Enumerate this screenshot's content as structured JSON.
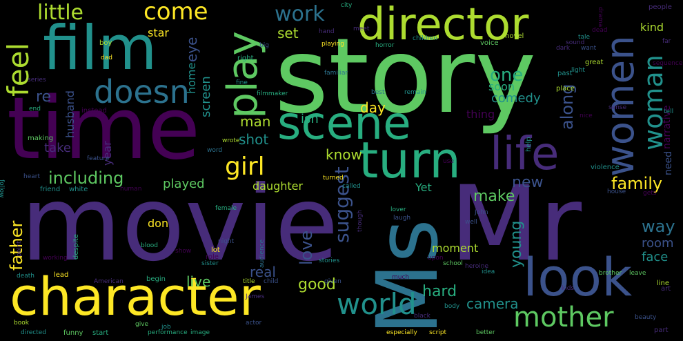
{
  "background": "#000000",
  "palette": {
    "purple": "#440154",
    "violet": "#472c7a",
    "indigo": "#3b528b",
    "blue": "#2c728e",
    "teal": "#21918c",
    "green": "#28ae80",
    "lime": "#5ec962",
    "yellow": "#fde725",
    "lightgreen": "#addc30"
  },
  "words": [
    {
      "text": "movie"
    },
    {
      "text": "story"
    },
    {
      "text": "time"
    },
    {
      "text": "Ms"
    },
    {
      "text": "Mr"
    },
    {
      "text": "film"
    },
    {
      "text": "character"
    },
    {
      "text": "director"
    },
    {
      "text": "scene"
    },
    {
      "text": "turn"
    },
    {
      "text": "look"
    },
    {
      "text": "women"
    },
    {
      "text": "woman"
    },
    {
      "text": "life"
    },
    {
      "text": "play"
    },
    {
      "text": "doesn"
    },
    {
      "text": "feel"
    },
    {
      "text": "little"
    },
    {
      "text": "come"
    },
    {
      "text": "work"
    },
    {
      "text": "world"
    },
    {
      "text": "mother"
    },
    {
      "text": "girl"
    },
    {
      "text": "one"
    },
    {
      "text": "along"
    },
    {
      "text": "including"
    },
    {
      "text": "family"
    },
    {
      "text": "way"
    },
    {
      "text": "father"
    },
    {
      "text": "husband"
    },
    {
      "text": "suggest"
    },
    {
      "text": "love"
    },
    {
      "text": "young"
    },
    {
      "text": "camera"
    },
    {
      "text": "good"
    },
    {
      "text": "hard"
    },
    {
      "text": "real"
    },
    {
      "text": "live"
    },
    {
      "text": "make"
    },
    {
      "text": "new"
    },
    {
      "text": "know"
    },
    {
      "text": "man"
    },
    {
      "text": "shot"
    },
    {
      "text": "day"
    },
    {
      "text": "year"
    },
    {
      "text": "take"
    },
    {
      "text": "re"
    },
    {
      "text": "set"
    },
    {
      "text": "eye"
    },
    {
      "text": "home"
    },
    {
      "text": "screen"
    },
    {
      "text": "star"
    },
    {
      "text": "soon"
    },
    {
      "text": "comedy"
    },
    {
      "text": "thing"
    },
    {
      "text": "isn"
    },
    {
      "text": "played"
    },
    {
      "text": "daughter"
    },
    {
      "text": "Yet"
    },
    {
      "text": "don"
    },
    {
      "text": "moment"
    },
    {
      "text": "room"
    },
    {
      "text": "face"
    },
    {
      "text": "narrative"
    },
    {
      "text": "need"
    },
    {
      "text": "kind"
    },
    {
      "text": "role"
    },
    {
      "text": "lot"
    },
    {
      "text": "sister"
    },
    {
      "text": "blood"
    },
    {
      "text": "despite"
    },
    {
      "text": "working"
    },
    {
      "text": "point"
    },
    {
      "text": "death"
    },
    {
      "text": "lead"
    },
    {
      "text": "American"
    },
    {
      "text": "begin"
    },
    {
      "text": "title"
    },
    {
      "text": "child"
    },
    {
      "text": "given"
    },
    {
      "text": "book"
    },
    {
      "text": "give"
    },
    {
      "text": "job"
    },
    {
      "text": "funny"
    },
    {
      "text": "start"
    },
    {
      "text": "directed"
    },
    {
      "text": "performance"
    },
    {
      "text": "image"
    },
    {
      "text": "actor"
    },
    {
      "text": "especially"
    },
    {
      "text": "script"
    },
    {
      "text": "better"
    },
    {
      "text": "art"
    },
    {
      "text": "part"
    },
    {
      "text": "line"
    },
    {
      "text": "brother"
    },
    {
      "text": "leave"
    },
    {
      "text": "violence"
    },
    {
      "text": "house"
    },
    {
      "text": "gets"
    },
    {
      "text": "tell"
    },
    {
      "text": "help"
    },
    {
      "text": "place"
    },
    {
      "text": "past"
    },
    {
      "text": "nice"
    },
    {
      "text": "light"
    },
    {
      "text": "great"
    },
    {
      "text": "want"
    },
    {
      "text": "dark"
    },
    {
      "text": "novel"
    },
    {
      "text": "voice"
    },
    {
      "text": "children"
    },
    {
      "text": "horror"
    },
    {
      "text": "playing"
    },
    {
      "text": "hand"
    },
    {
      "text": "city"
    },
    {
      "text": "meet"
    },
    {
      "text": "dead"
    },
    {
      "text": "people"
    },
    {
      "text": "drama"
    },
    {
      "text": "tale"
    },
    {
      "text": "sound"
    },
    {
      "text": "far"
    },
    {
      "text": "boy"
    },
    {
      "text": "dad"
    },
    {
      "text": "right"
    },
    {
      "text": "big"
    },
    {
      "text": "fine"
    },
    {
      "text": "filmmaker"
    },
    {
      "text": "series"
    },
    {
      "text": "end"
    },
    {
      "text": "instead"
    },
    {
      "text": "making"
    },
    {
      "text": "word"
    },
    {
      "text": "wrote"
    },
    {
      "text": "follow"
    },
    {
      "text": "heart"
    },
    {
      "text": "friend"
    },
    {
      "text": "white"
    },
    {
      "text": "human"
    },
    {
      "text": "female"
    },
    {
      "text": "night"
    },
    {
      "text": "stories"
    },
    {
      "text": "audience"
    },
    {
      "text": "though"
    },
    {
      "text": "lover"
    },
    {
      "text": "laugh"
    },
    {
      "text": "much"
    },
    {
      "text": "school"
    },
    {
      "text": "heroine"
    },
    {
      "text": "John"
    },
    {
      "text": "well"
    },
    {
      "text": "idea"
    },
    {
      "text": "body"
    },
    {
      "text": "black"
    },
    {
      "text": "beauty"
    },
    {
      "text": "remain"
    },
    {
      "text": "best"
    },
    {
      "text": "familiar"
    },
    {
      "text": "turned"
    },
    {
      "text": "feature"
    },
    {
      "text": "show"
    },
    {
      "text": "James"
    },
    {
      "text": "called"
    },
    {
      "text": "use"
    },
    {
      "text": "sense"
    },
    {
      "text": "kids"
    },
    {
      "text": "sequence"
    },
    {
      "text": "upon"
    },
    {
      "text": "say"
    }
  ]
}
